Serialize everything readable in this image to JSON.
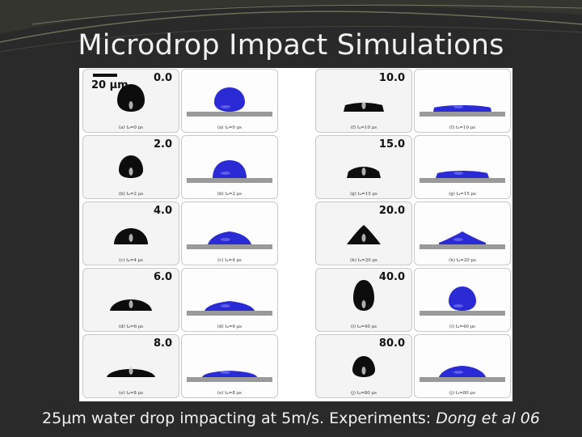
{
  "slide": {
    "title": "Microdrop Impact Simulations",
    "caption_main": "25μm water drop impacting at 5m/s.  Experiments: ",
    "caption_ref": "Dong et al 06",
    "scale_label": "20 μm"
  },
  "panels_left": [
    {
      "time": "0.0",
      "cap_exp": "(a) t₄=0 μs",
      "cap_sim": "(a) t₄=0 μs"
    },
    {
      "time": "2.0",
      "cap_exp": "(b) t₄=2 μs",
      "cap_sim": "(b) t₄=2 μs"
    },
    {
      "time": "4.0",
      "cap_exp": "(c) t₄=4 μs",
      "cap_sim": "(c) t₄=4 μs"
    },
    {
      "time": "6.0",
      "cap_exp": "(d) t₄=6 μs",
      "cap_sim": "(d) t₄=6 μs"
    },
    {
      "time": "8.0",
      "cap_exp": "(e) t₄=8 μs",
      "cap_sim": "(e) t₄=8 μs"
    }
  ],
  "panels_right": [
    {
      "time": "10.0",
      "cap_exp": "(f) t₄=10 μs",
      "cap_sim": "(f) t₄=10 μs"
    },
    {
      "time": "15.0",
      "cap_exp": "(g) t₄=15 μs",
      "cap_sim": "(g) t₄=15 μs"
    },
    {
      "time": "20.0",
      "cap_exp": "(h) t₄=20 μs",
      "cap_sim": "(h) t₄=20 μs"
    },
    {
      "time": "40.0",
      "cap_exp": "(i) t₄=40 μs",
      "cap_sim": "(i) t₄=40 μs"
    },
    {
      "time": "80.0",
      "cap_exp": "(j) t₄=80 μs",
      "cap_sim": "(j) t₄=80 μs"
    }
  ],
  "colors": {
    "drop_sim": "#2b2bd6",
    "drop_exp": "#0d0d0d",
    "plate": "#9a9a9a"
  }
}
